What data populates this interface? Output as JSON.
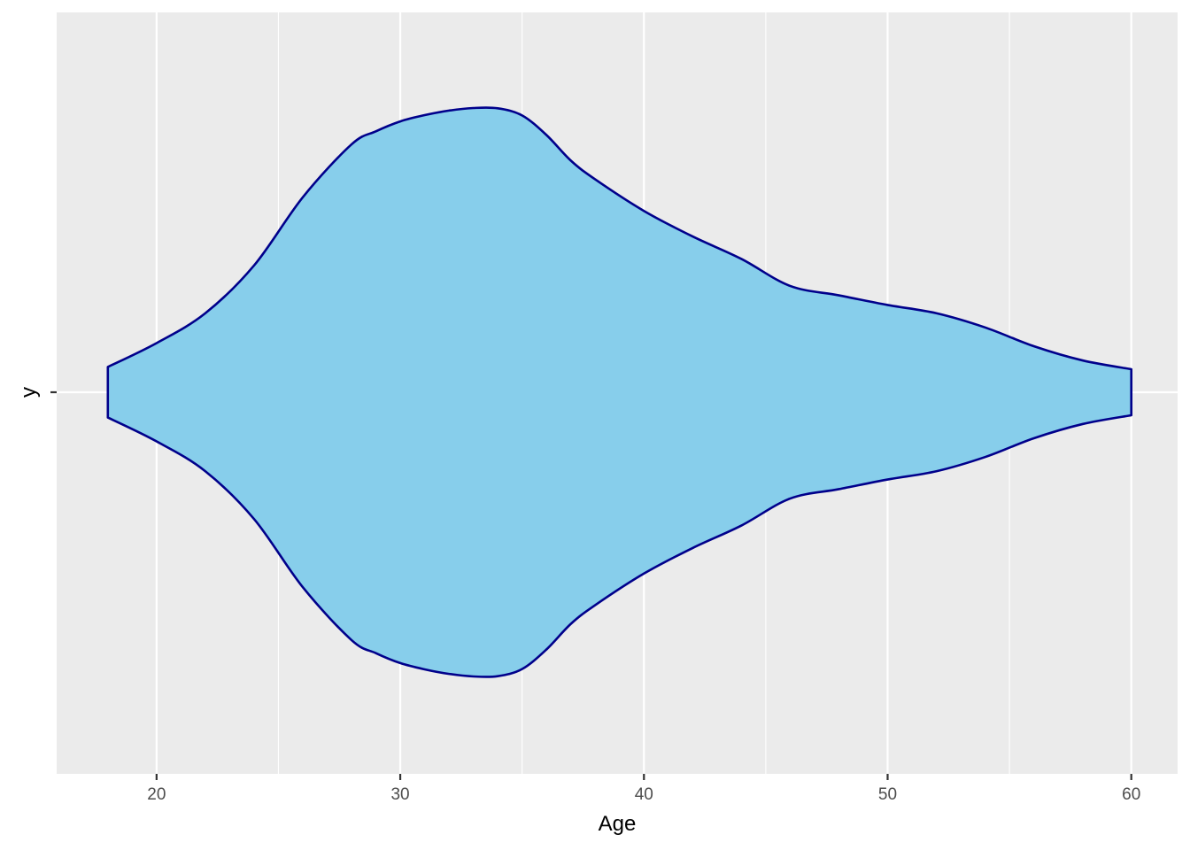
{
  "chart_data": {
    "type": "violin",
    "title": "",
    "xlabel": "Age",
    "ylabel": "y",
    "xlim": [
      15.9,
      61.9
    ],
    "x_ticks_major": [
      20,
      30,
      40,
      50,
      60
    ],
    "x_ticks_minor": [
      25,
      35,
      45,
      55
    ],
    "x_tick_labels": [
      "20",
      "30",
      "40",
      "50",
      "60"
    ],
    "y_tick_labels": [
      "-"
    ],
    "orientation": "horizontal",
    "grid": true,
    "fill_color": "#87CEEB",
    "line_color": "#00008B",
    "panel_background": "#EBEBEB",
    "grid_color": "#FFFFFF",
    "density": {
      "x": [
        18,
        20,
        22,
        24,
        26,
        28,
        29,
        30,
        31,
        32,
        33,
        34,
        35,
        36,
        37,
        38,
        40,
        42,
        44,
        46,
        48,
        50,
        52,
        54,
        56,
        58,
        60
      ],
      "relative_half_width": [
        0.089,
        0.173,
        0.278,
        0.446,
        0.686,
        0.872,
        0.918,
        0.953,
        0.975,
        0.991,
        1.0,
        0.999,
        0.974,
        0.905,
        0.815,
        0.749,
        0.638,
        0.548,
        0.469,
        0.374,
        0.341,
        0.307,
        0.278,
        0.228,
        0.162,
        0.112,
        0.081
      ]
    }
  }
}
